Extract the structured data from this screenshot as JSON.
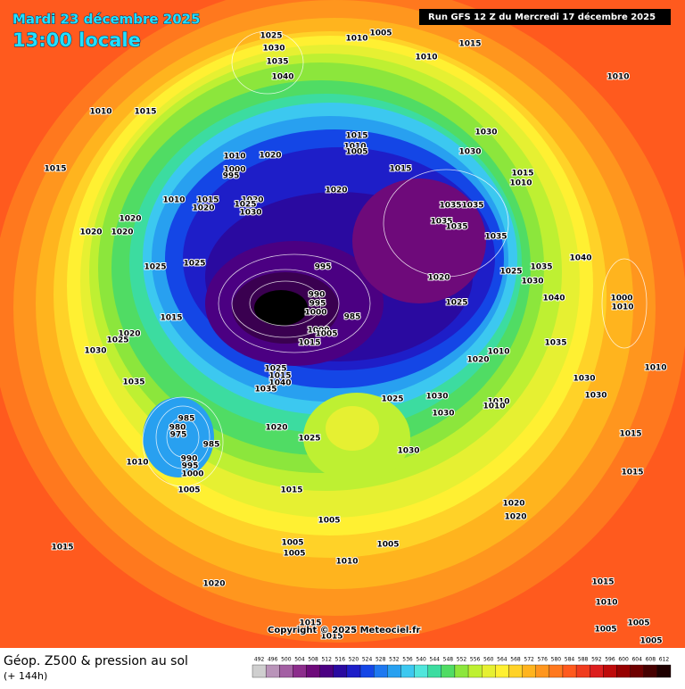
{
  "header": {
    "date": "Mardi 23 décembre 2025",
    "time": "13:00 locale",
    "run": "Run GFS 12 Z du Mercredi 17 décembre 2025"
  },
  "footer": {
    "title": "Géop. Z500 & pression au sol",
    "lead_time": "(+ 144h)",
    "copyright": "Copyright © 2025 Meteociel.fr"
  },
  "legend": {
    "values": [
      492,
      496,
      500,
      504,
      508,
      512,
      516,
      520,
      524,
      528,
      532,
      536,
      540,
      544,
      548,
      552,
      556,
      560,
      564,
      568,
      572,
      576,
      580,
      584,
      588,
      592,
      596,
      600,
      604,
      608,
      612
    ],
    "colors": [
      "#cfcfcf",
      "#b994b9",
      "#a35fa3",
      "#8c2d8c",
      "#6e0a7a",
      "#4b0082",
      "#2a0aa0",
      "#1e1ec8",
      "#1446e6",
      "#1e78f0",
      "#28a0f0",
      "#3cc8f0",
      "#50e6dc",
      "#3cdca0",
      "#50dc64",
      "#8ce63c",
      "#bef032",
      "#e6f032",
      "#fff032",
      "#ffd228",
      "#ffb41e",
      "#ff961e",
      "#ff781e",
      "#ff5a1e",
      "#f03c1e",
      "#dc1e1e",
      "#be0a0a",
      "#960000",
      "#6e0000",
      "#460000",
      "#1e0000"
    ]
  },
  "pressure_labels": [
    1025,
    1030,
    1035,
    1040,
    1010,
    1005,
    1010,
    1015,
    1010,
    1010,
    1015,
    1015,
    1020,
    1015,
    1010,
    1005,
    1015,
    1030,
    1030,
    1015,
    1010,
    1010,
    1000,
    995,
    1010,
    1015,
    1020,
    1020,
    1025,
    1030,
    1020,
    1020,
    1020,
    1020,
    1035,
    1035,
    1035,
    1035,
    1035,
    1040,
    1025,
    1025,
    995,
    1035,
    1025,
    1030,
    1020,
    990,
    995,
    1000,
    985,
    1015,
    1040,
    1000,
    1010,
    1025,
    1020,
    1025,
    1030,
    1000,
    1005,
    1015,
    1035,
    1010,
    1020,
    1035,
    1025,
    1015,
    1040,
    1035,
    1025,
    1030,
    1030,
    1010,
    1030,
    1010,
    1010,
    1030,
    985,
    980,
    975,
    985,
    1020,
    1025,
    1030,
    1015,
    1010,
    990,
    995,
    1000,
    1005,
    1015,
    1015,
    1020,
    1020,
    1005,
    1015,
    1005,
    1005,
    1005,
    1010,
    1020,
    1015,
    1010,
    1015,
    1015,
    1005,
    1005,
    1005
  ]
}
